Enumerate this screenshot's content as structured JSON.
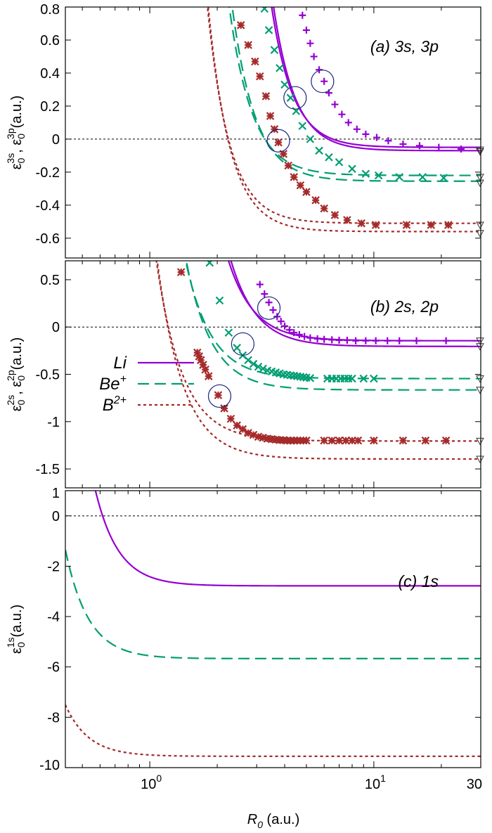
{
  "chart_data": [
    {
      "panel": "a",
      "type": "line",
      "panel_label": "(a) 3s, 3p",
      "ylabel": {
        "base": "ε",
        "sub1": "0",
        "sup1": "3s",
        "sep": ", ε",
        "sub2": "0",
        "sup2": "3p",
        "unit": "(a.u.)"
      },
      "xscale": "log",
      "xlim": [
        0.42,
        30
      ],
      "ylim": [
        -0.72,
        0.8
      ],
      "yticks": [
        {
          "v": 0.8,
          "t": "0.8"
        },
        {
          "v": 0.6,
          "t": "0.6"
        },
        {
          "v": 0.4,
          "t": "0.4"
        },
        {
          "v": 0.2,
          "t": "0.2"
        },
        {
          "v": 0,
          "t": "0"
        },
        {
          "v": -0.2,
          "t": "-0.2"
        },
        {
          "v": -0.4,
          "t": "-0.4"
        },
        {
          "v": -0.6,
          "t": "-0.6"
        }
      ],
      "zero_line": true,
      "series": [
        {
          "color": "#9400d3",
          "dash": "solid",
          "ref": "Li",
          "curve": {
            "A": 0.05,
            "R0": 3.7,
            "d": 0.66,
            "p": 4.5
          }
        },
        {
          "color": "#9400d3",
          "dash": "solid",
          "ref": "Li",
          "curve": {
            "A": 0.07,
            "R0": 3.7,
            "d": 0.74,
            "p": 4.5
          }
        },
        {
          "color": "#009e73",
          "dash": "dashed",
          "ref": "Be+",
          "curve": {
            "A": 0.22,
            "R0": 2.6,
            "d": 0.57,
            "p": 4.2
          }
        },
        {
          "color": "#009e73",
          "dash": "dashed",
          "ref": "Be+",
          "curve": {
            "A": 0.255,
            "R0": 2.6,
            "d": 0.67,
            "p": 4.2
          }
        },
        {
          "color": "#a52a2a",
          "dash": "dotted",
          "ref": "B2+",
          "curve": {
            "A": 0.51,
            "R0": 2.1,
            "d": 0.68,
            "p": 4.4
          }
        },
        {
          "color": "#a52a2a",
          "dash": "dotted",
          "ref": "B2+",
          "curve": {
            "A": 0.56,
            "R0": 2.1,
            "d": 0.73,
            "p": 4.4
          }
        }
      ],
      "markers": [
        {
          "marker": "plus",
          "color": "#9400d3",
          "x": [
            4.8,
            5.0,
            5.2,
            5.4,
            5.7,
            6.0,
            6.3,
            6.7,
            7.2,
            7.7,
            8.4,
            9.2,
            10.3,
            11.6,
            13.5,
            16.0,
            19.5,
            24.5
          ],
          "y": [
            0.75,
            0.66,
            0.58,
            0.5,
            0.42,
            0.35,
            0.28,
            0.21,
            0.15,
            0.1,
            0.06,
            0.03,
            0.01,
            -0.01,
            -0.03,
            -0.04,
            -0.05,
            -0.06
          ]
        },
        {
          "marker": "x",
          "color": "#009e73",
          "x": [
            3.25,
            3.4,
            3.6,
            3.8,
            4.0,
            4.25,
            4.5,
            4.8,
            5.2,
            5.7,
            6.3,
            7.0,
            8.0,
            9.2,
            10.5,
            13.0,
            16.5,
            20.5
          ],
          "y": [
            0.79,
            0.66,
            0.54,
            0.43,
            0.33,
            0.25,
            0.17,
            0.08,
            0.0,
            -0.07,
            -0.11,
            -0.14,
            -0.18,
            -0.21,
            -0.22,
            -0.23,
            -0.23,
            -0.235
          ]
        },
        {
          "marker": "asterisk",
          "color": "#a52a2a",
          "x": [
            2.55,
            2.75,
            2.95,
            3.1,
            3.3,
            3.45,
            3.6,
            3.75,
            3.95,
            4.15,
            4.4,
            4.7,
            5.0,
            5.5,
            6.0,
            6.7,
            7.6,
            8.8,
            10.2,
            14.0,
            18.0,
            21.5
          ],
          "y": [
            0.69,
            0.57,
            0.47,
            0.38,
            0.26,
            0.14,
            0.06,
            -0.02,
            -0.09,
            -0.16,
            -0.23,
            -0.28,
            -0.32,
            -0.37,
            -0.42,
            -0.46,
            -0.49,
            -0.51,
            -0.52,
            -0.52,
            -0.52,
            -0.52
          ]
        }
      ],
      "circles": [
        {
          "x": 5.9,
          "y": 0.35
        },
        {
          "x": 4.45,
          "y": 0.25
        },
        {
          "x": 3.75,
          "y": -0.01
        }
      ],
      "triangles": [
        -0.065,
        -0.075,
        -0.23,
        -0.265,
        -0.52,
        -0.57
      ]
    },
    {
      "panel": "b",
      "type": "line",
      "panel_label": "(b) 2s, 2p",
      "ylabel": {
        "base": "ε",
        "sub1": "0",
        "sup1": "2s",
        "sep": ", ε",
        "sub2": "0",
        "sup2": "2p",
        "unit": "(a.u.)"
      },
      "xscale": "log",
      "xlim": [
        0.42,
        30
      ],
      "ylim": [
        -1.7,
        0.7
      ],
      "yticks": [
        {
          "v": 0.5,
          "t": "0.5"
        },
        {
          "v": 0,
          "t": "0"
        },
        {
          "v": -0.5,
          "t": "-0.5"
        },
        {
          "v": -1,
          "t": "-1"
        },
        {
          "v": -1.5,
          "t": "-1.5"
        }
      ],
      "zero_line": true,
      "legend": [
        {
          "label": "Li",
          "sup": "",
          "color": "#9400d3",
          "dash": "solid"
        },
        {
          "label": "Be",
          "sup": "+",
          "color": "#009e73",
          "dash": "dashed"
        },
        {
          "label": "B",
          "sup": "2+",
          "color": "#a52a2a",
          "dash": "dotted"
        }
      ],
      "series": [
        {
          "color": "#9400d3",
          "dash": "solid",
          "ref": "Li",
          "curve": {
            "A": 0.145,
            "R0": 2.25,
            "d": 0.84,
            "p": 3.8
          }
        },
        {
          "color": "#9400d3",
          "dash": "solid",
          "ref": "Li",
          "curve": {
            "A": 0.205,
            "R0": 2.25,
            "d": 0.99,
            "p": 3.8
          }
        },
        {
          "color": "#009e73",
          "dash": "dashed",
          "ref": "Be+",
          "curve": {
            "A": 0.545,
            "R0": 1.45,
            "d": 1.23,
            "p": 3.8
          }
        },
        {
          "color": "#009e73",
          "dash": "dashed",
          "ref": "Be+",
          "curve": {
            "A": 0.665,
            "R0": 1.45,
            "d": 1.38,
            "p": 3.8
          }
        },
        {
          "color": "#a52a2a",
          "dash": "dotted",
          "ref": "B2+",
          "curve": {
            "A": 1.205,
            "R0": 1.1,
            "d": 1.72,
            "p": 3.7
          }
        },
        {
          "color": "#a52a2a",
          "dash": "dotted",
          "ref": "B2+",
          "curve": {
            "A": 1.395,
            "R0": 1.1,
            "d": 1.95,
            "p": 3.7
          }
        }
      ],
      "markers": [
        {
          "marker": "plus",
          "color": "#9400d3",
          "x": [
            3.1,
            3.25,
            3.4,
            3.55,
            3.7,
            3.85,
            4.0,
            4.2,
            4.4,
            4.65,
            4.9,
            5.2,
            5.6,
            6.0,
            6.5,
            7.0,
            7.6,
            8.3,
            9.2,
            10.2,
            11.5,
            13.0,
            15.5,
            21.0
          ],
          "y": [
            0.45,
            0.35,
            0.26,
            0.18,
            0.11,
            0.06,
            0.01,
            -0.03,
            -0.06,
            -0.08,
            -0.1,
            -0.115,
            -0.125,
            -0.13,
            -0.135,
            -0.14,
            -0.14,
            -0.145,
            -0.145,
            -0.145,
            -0.145,
            -0.145,
            -0.145,
            -0.145
          ]
        },
        {
          "marker": "x",
          "color": "#009e73",
          "x": [
            1.85,
            2.05,
            2.25,
            2.45,
            2.6,
            2.75,
            2.9,
            3.05,
            3.2,
            3.35,
            3.5,
            3.65,
            3.8,
            3.95,
            4.1,
            4.25,
            4.4,
            4.55,
            4.7,
            4.85,
            5.0,
            5.2,
            6.2,
            6.5,
            6.8,
            7.1,
            7.4,
            7.7,
            8.0,
            9.0,
            10.0
          ],
          "y": [
            0.68,
            0.28,
            -0.06,
            -0.22,
            -0.3,
            -0.35,
            -0.39,
            -0.42,
            -0.44,
            -0.46,
            -0.47,
            -0.48,
            -0.49,
            -0.5,
            -0.505,
            -0.51,
            -0.515,
            -0.52,
            -0.525,
            -0.53,
            -0.535,
            -0.54,
            -0.545,
            -0.545,
            -0.545,
            -0.545,
            -0.545,
            -0.545,
            -0.545,
            -0.545,
            -0.545
          ]
        },
        {
          "marker": "asterisk",
          "color": "#a52a2a",
          "x": [
            1.38,
            1.63,
            1.66,
            1.69,
            1.73,
            1.77,
            1.83,
            2.02,
            2.15,
            2.3,
            2.45,
            2.6,
            2.75,
            2.9,
            3.05,
            3.2,
            3.35,
            3.5,
            3.65,
            3.8,
            3.95,
            4.1,
            4.25,
            4.4,
            4.55,
            4.7,
            4.85,
            5.0,
            6.0,
            6.5,
            7.0,
            7.5,
            8.0,
            8.5,
            10.0,
            13.5,
            17.0,
            21.0
          ],
          "y": [
            0.58,
            -0.27,
            -0.31,
            -0.35,
            -0.4,
            -0.45,
            -0.52,
            -0.72,
            -0.86,
            -0.97,
            -1.04,
            -1.08,
            -1.12,
            -1.14,
            -1.16,
            -1.17,
            -1.18,
            -1.185,
            -1.19,
            -1.195,
            -1.195,
            -1.2,
            -1.2,
            -1.2,
            -1.2,
            -1.2,
            -1.2,
            -1.2,
            -1.2,
            -1.2,
            -1.2,
            -1.2,
            -1.2,
            -1.2,
            -1.2,
            -1.2,
            -1.2,
            -1.2
          ]
        }
      ],
      "circles": [
        {
          "x": 3.4,
          "y": 0.2
        },
        {
          "x": 2.6,
          "y": -0.18
        },
        {
          "x": 2.05,
          "y": -0.73
        }
      ],
      "triangles": [
        -0.145,
        -0.205,
        -0.545,
        -0.665,
        -1.205,
        -1.395
      ]
    },
    {
      "panel": "c",
      "type": "line",
      "panel_label": "(c) 1s",
      "ylabel": {
        "base": "ε",
        "sub1": "0",
        "sup1": "1s",
        "sep": "",
        "sub2": "",
        "sup2": "",
        "unit": "(a.u.)"
      },
      "xscale": "log",
      "xlim": [
        0.42,
        30
      ],
      "ylim": [
        -10,
        1
      ],
      "yticks": [
        {
          "v": 1,
          "t": "1"
        },
        {
          "v": 0,
          "t": "0"
        },
        {
          "v": -2,
          "t": "-2"
        },
        {
          "v": -4,
          "t": "-4"
        },
        {
          "v": -6,
          "t": "-6"
        },
        {
          "v": -8,
          "t": "-8"
        },
        {
          "v": -10,
          "t": "-10"
        }
      ],
      "zero_line": true,
      "xaxis": {
        "title": "R",
        "title_sub": "0",
        "unit": " (a.u.)",
        "ticks": [
          {
            "v": 1,
            "base": "10",
            "exp": "0"
          },
          {
            "v": 10,
            "base": "10",
            "exp": "1"
          },
          {
            "v": 30,
            "base": "30",
            "exp": ""
          }
        ]
      },
      "series": [
        {
          "color": "#9400d3",
          "dash": "solid",
          "ref": "Li",
          "curve": {
            "A": 2.78,
            "R0": 0.6,
            "d": 3.1,
            "p": 4.2
          }
        },
        {
          "color": "#009e73",
          "dash": "dashed",
          "ref": "Be+",
          "curve": {
            "A": 5.67,
            "R0": 0.4,
            "d": 5.3,
            "p": 4.2
          }
        },
        {
          "color": "#a52a2a",
          "dash": "dotted",
          "ref": "B2+",
          "curve": {
            "A": 9.55,
            "R0": 0.3,
            "d": 8.4,
            "p": 4.2
          }
        }
      ],
      "markers": [],
      "circles": [],
      "triangles": []
    }
  ]
}
